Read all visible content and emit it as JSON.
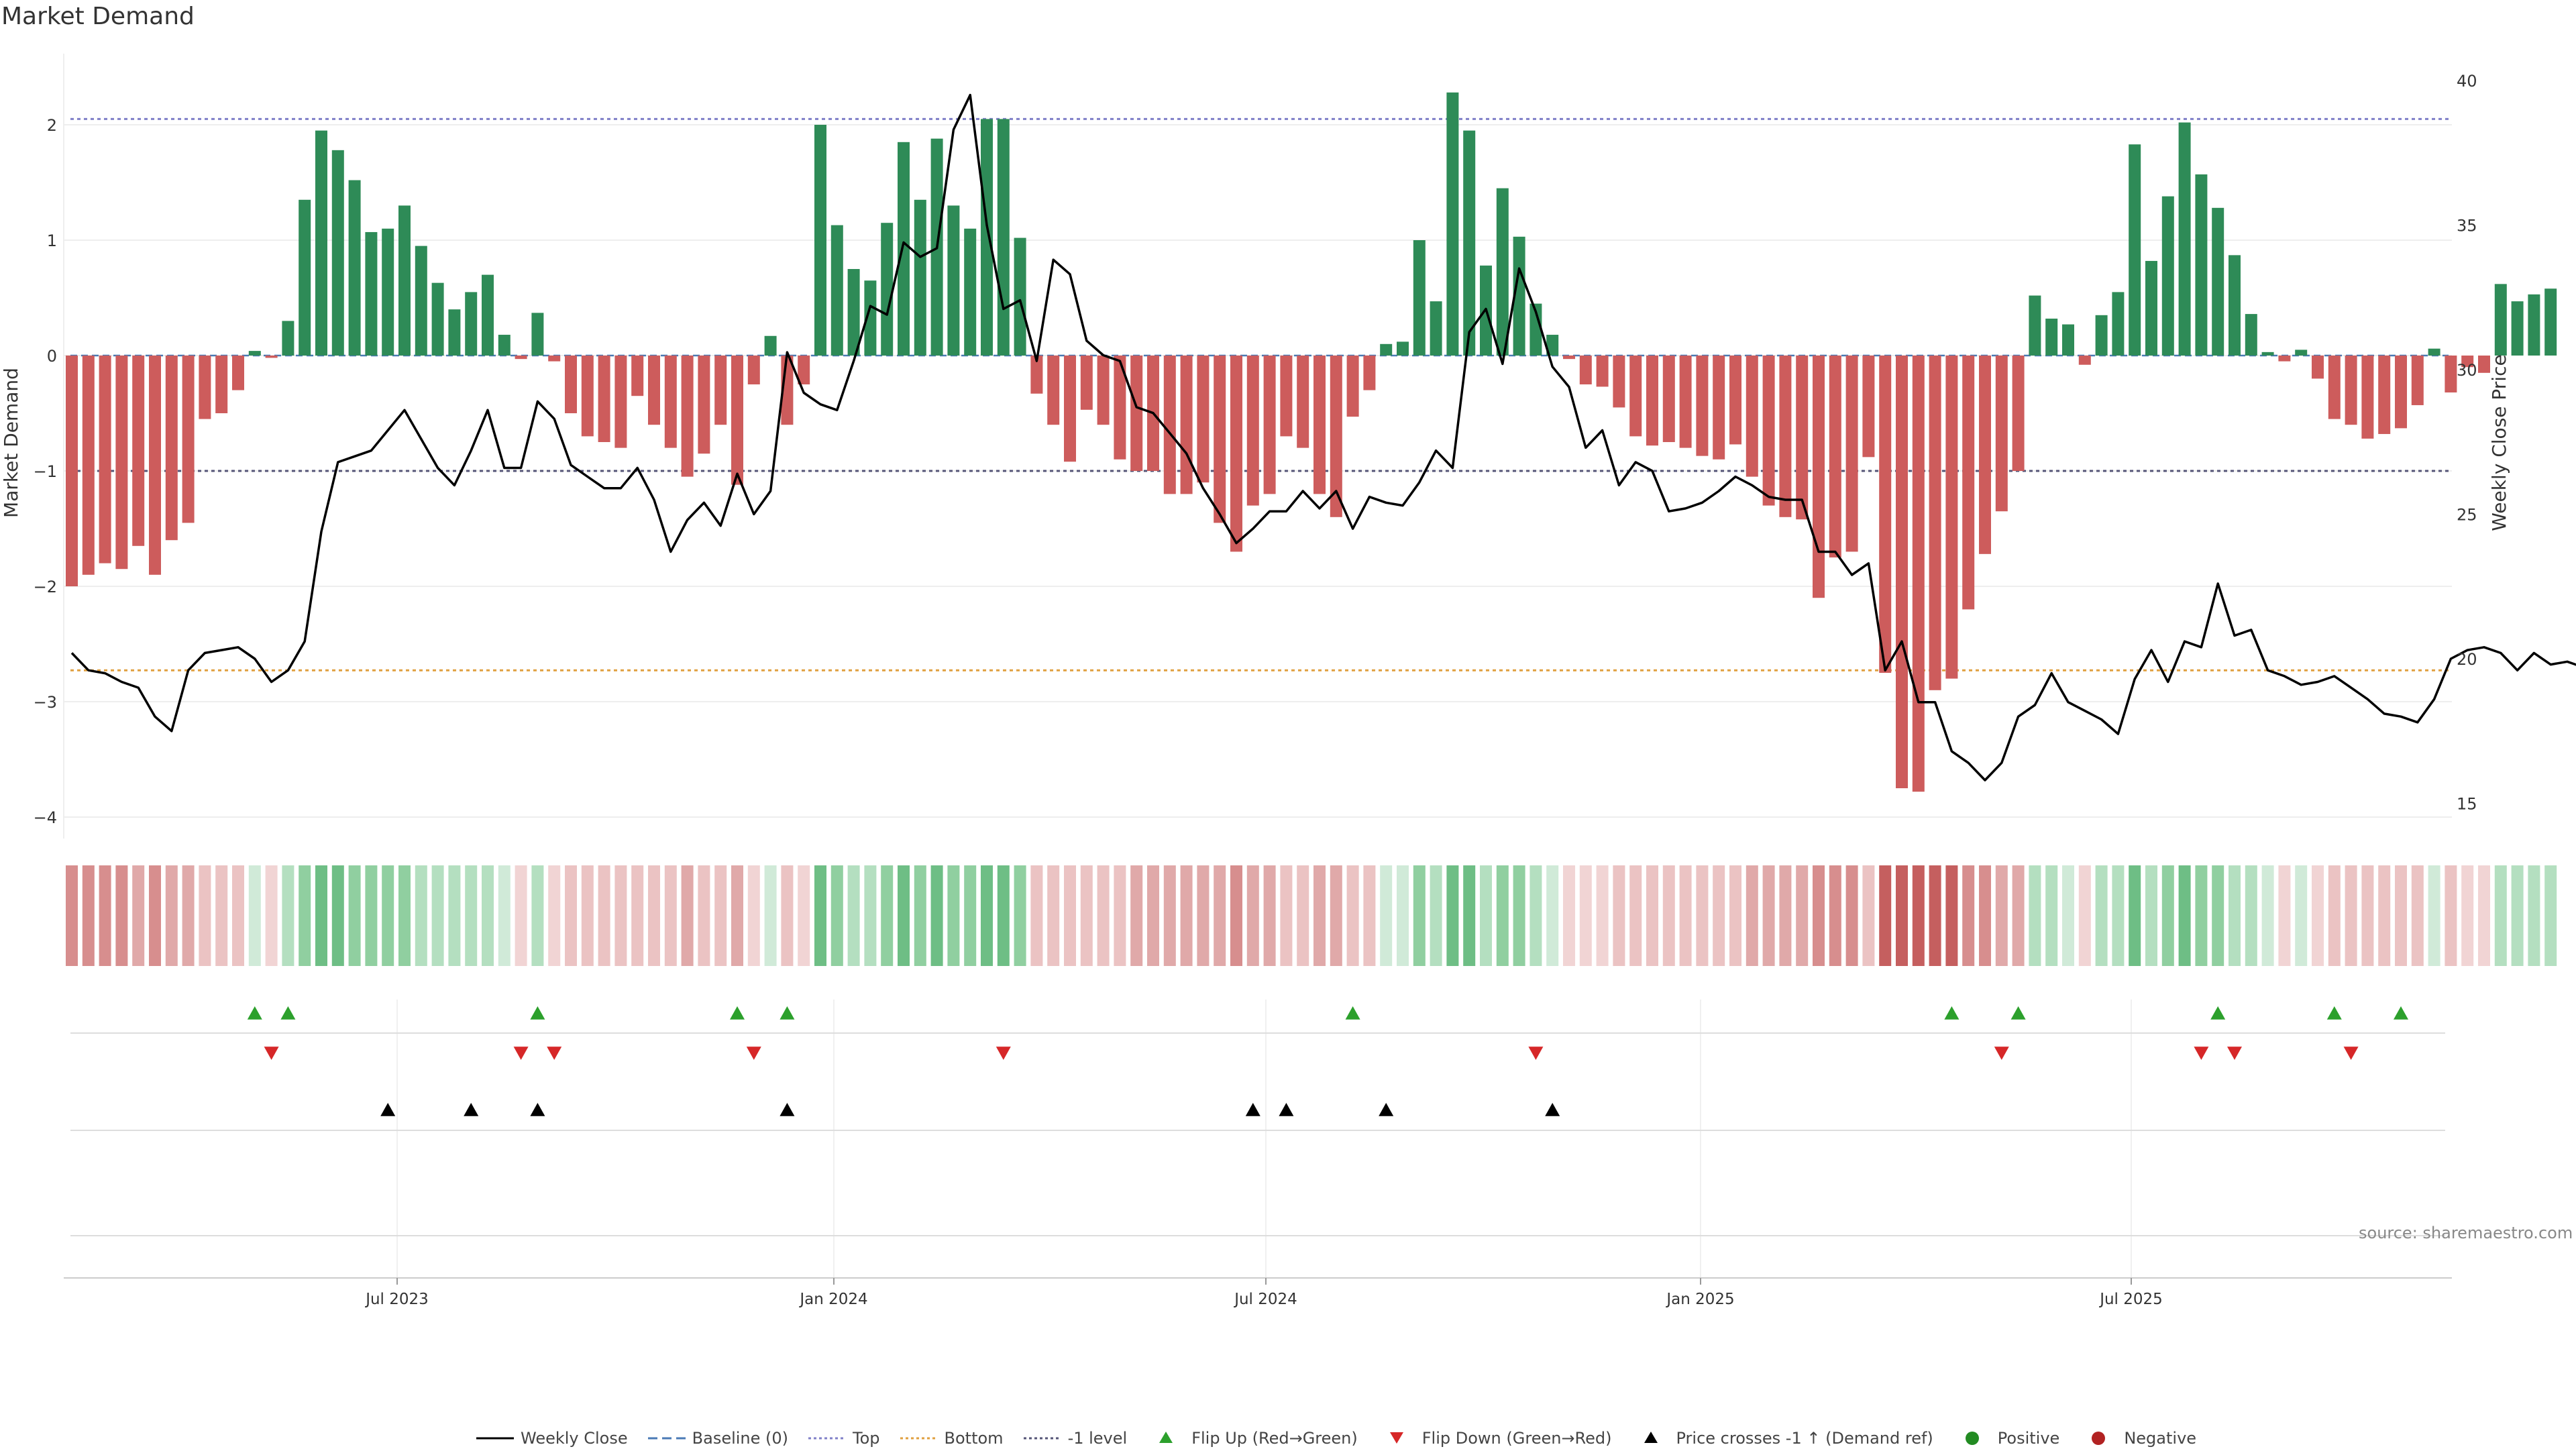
{
  "chart_data": {
    "type": "bar",
    "title": "Market Demand",
    "source": "source: sharemaestro.com",
    "ylabel": "Market Demand",
    "y2label": "Weekly Close Price",
    "ylim": [
      -4,
      2.3
    ],
    "y2lim": [
      15,
      40
    ],
    "yticks": [
      "2",
      "1",
      "0",
      "−1",
      "−2",
      "−3",
      "−4"
    ],
    "y2ticks": [
      "40",
      "35",
      "30",
      "25",
      "20",
      "15"
    ],
    "x_ticks": [
      "Jul 2023",
      "Jan 2024",
      "Jul 2024",
      "Jan 2025",
      "Jul 2025"
    ],
    "reference_lines": {
      "top": 2.05,
      "minus_one_level": -1.0,
      "bottom_price": 19.6
    },
    "grid": true,
    "series": [
      {
        "name": "Market Demand",
        "values": [
          -2.0,
          -1.9,
          -1.8,
          -1.85,
          -1.65,
          -1.9,
          -1.6,
          -1.45,
          -0.55,
          -0.5,
          -0.3,
          0.04,
          -0.02,
          0.3,
          1.35,
          1.95,
          1.78,
          1.52,
          1.07,
          1.1,
          1.3,
          0.95,
          0.63,
          0.4,
          0.55,
          0.7,
          0.18,
          -0.03,
          0.37,
          -0.05,
          -0.5,
          -0.7,
          -0.75,
          -0.8,
          -0.35,
          -0.6,
          -0.8,
          -1.05,
          -0.85,
          -0.6,
          -1.12,
          -0.25,
          0.17,
          -0.6,
          -0.25,
          2.0,
          1.13,
          0.75,
          0.65,
          1.15,
          1.85,
          1.35,
          1.88,
          1.3,
          1.1,
          2.05,
          2.05,
          1.02,
          -0.33,
          -0.6,
          -0.92,
          -0.47,
          -0.6,
          -0.9,
          -1.0,
          -1.0,
          -1.2,
          -1.2,
          -1.1,
          -1.45,
          -1.7,
          -1.3,
          -1.2,
          -0.7,
          -0.8,
          -1.2,
          -1.4,
          -0.53,
          -0.3,
          0.1,
          0.12,
          1.0,
          0.47,
          2.28,
          1.95,
          0.78,
          1.45,
          1.03,
          0.45,
          0.18,
          -0.03,
          -0.25,
          -0.27,
          -0.45,
          -0.7,
          -0.78,
          -0.75,
          -0.8,
          -0.87,
          -0.9,
          -0.77,
          -1.05,
          -1.3,
          -1.4,
          -1.42,
          -2.1,
          -1.75,
          -1.7,
          -0.88,
          -2.75,
          -3.75,
          -3.78,
          -2.9,
          -2.8,
          -2.2,
          -1.72,
          -1.35,
          -1.0,
          0.52,
          0.32,
          0.27,
          -0.08,
          0.35,
          0.55,
          1.83,
          0.82,
          1.38,
          2.02,
          1.57,
          1.28,
          0.87,
          0.36,
          0.03,
          -0.05,
          0.05,
          -0.2,
          -0.55,
          -0.6,
          -0.72,
          -0.68,
          -0.63,
          -0.43,
          0.06,
          -0.32,
          -0.1,
          -0.15,
          0.62,
          0.47,
          0.53,
          0.58
        ]
      },
      {
        "name": "Weekly Close",
        "values": [
          20.2,
          19.6,
          19.5,
          19.2,
          19.0,
          18.0,
          17.5,
          19.6,
          20.2,
          20.3,
          20.4,
          20.0,
          19.2,
          19.6,
          20.6,
          24.4,
          26.8,
          27.0,
          27.2,
          27.9,
          28.6,
          27.6,
          26.6,
          26.0,
          27.2,
          28.6,
          26.6,
          26.6,
          28.9,
          28.3,
          26.7,
          26.3,
          25.9,
          25.9,
          26.6,
          25.5,
          23.7,
          24.8,
          25.4,
          24.6,
          26.4,
          25.0,
          25.8,
          30.6,
          29.2,
          28.8,
          28.6,
          30.3,
          32.2,
          31.9,
          34.4,
          33.9,
          34.2,
          38.3,
          39.5,
          35.0,
          32.1,
          32.4,
          30.3,
          33.8,
          33.3,
          31.0,
          30.5,
          30.3,
          28.7,
          28.5,
          27.8,
          27.1,
          25.9,
          25.0,
          24.0,
          24.5,
          25.1,
          25.1,
          25.8,
          25.2,
          25.8,
          24.5,
          25.6,
          25.4,
          25.3,
          26.1,
          27.2,
          26.6,
          31.3,
          32.1,
          30.2,
          33.5,
          32.0,
          30.1,
          29.4,
          27.3,
          27.9,
          26.0,
          26.8,
          26.5,
          25.1,
          25.2,
          25.4,
          25.8,
          26.3,
          26.0,
          25.6,
          25.5,
          25.5,
          23.7,
          23.7,
          22.9,
          23.3,
          19.6,
          20.6,
          18.5,
          18.5,
          16.8,
          16.4,
          15.8,
          16.4,
          18.0,
          18.4,
          19.5,
          18.5,
          18.2,
          17.9,
          17.4,
          19.3,
          20.3,
          19.2,
          20.6,
          20.4,
          22.6,
          20.8,
          21.0,
          19.6,
          19.4,
          19.1,
          19.2,
          19.4,
          19.0,
          18.6,
          18.1,
          18.0,
          17.8,
          18.6,
          20.0,
          20.3,
          20.4,
          20.2,
          19.6,
          20.2,
          19.8,
          19.9,
          19.7
        ]
      }
    ],
    "shading_levels": [
      -2.0,
      -1.9,
      -1.8,
      -1.85,
      -1.65,
      -1.9,
      -1.6,
      -1.45,
      -0.55,
      -0.5,
      -0.3,
      0.04,
      -0.02,
      0.3,
      1.35,
      1.95,
      1.78,
      1.52,
      1.07,
      1.1,
      1.3,
      0.95,
      0.63,
      0.4,
      0.55,
      0.7,
      0.18,
      -0.03,
      0.37,
      -0.05,
      -0.5,
      -0.7,
      -0.75,
      -0.8,
      -0.35,
      -0.6,
      -0.8,
      -1.05,
      -0.85,
      -0.6,
      -1.12,
      -0.25,
      0.17,
      -0.6,
      -0.25,
      2.0,
      1.13,
      0.75,
      0.65,
      1.15,
      1.85,
      1.35,
      1.88,
      1.3,
      1.1,
      2.05,
      2.05,
      1.02,
      -0.33,
      -0.6,
      -0.92,
      -0.47,
      -0.6,
      -0.9,
      -1.0,
      -1.0,
      -1.2,
      -1.2,
      -1.1,
      -1.45,
      -1.7,
      -1.3,
      -1.2,
      -0.7,
      -0.8,
      -1.2,
      -1.4,
      -0.53,
      -0.3,
      0.1,
      0.12,
      1.0,
      0.47,
      2.28,
      1.95,
      0.78,
      1.45,
      1.03,
      0.45,
      0.18,
      -0.03,
      -0.25,
      -0.27,
      -0.45,
      -0.7,
      -0.78,
      -0.75,
      -0.8,
      -0.87,
      -0.9,
      -0.77,
      -1.05,
      -1.3,
      -1.4,
      -1.42,
      -2.1,
      -1.75,
      -1.7,
      -0.88,
      -2.75,
      -3.75,
      -3.78,
      -2.9,
      -2.8,
      -2.2,
      -1.72,
      -1.35,
      -1.0,
      0.52,
      0.32,
      0.27,
      -0.08,
      0.35,
      0.55,
      1.83,
      0.82,
      1.38,
      2.02,
      1.57,
      1.28,
      0.87,
      0.36,
      0.03,
      -0.05,
      0.05,
      -0.2,
      -0.55,
      -0.6,
      -0.72,
      -0.68,
      -0.63,
      -0.43,
      0.06,
      -0.32,
      -0.1,
      -0.15,
      0.62,
      0.47,
      0.53,
      0.58
    ],
    "flip_up_weeks": [
      11,
      13,
      28,
      40,
      43,
      77,
      113,
      117,
      129,
      136,
      140
    ],
    "flip_down_weeks": [
      12,
      27,
      29,
      41,
      56,
      88,
      116,
      128,
      130,
      137
    ],
    "price_cross_weeks": [
      19,
      24,
      28,
      43,
      71,
      73,
      79,
      89
    ],
    "legend": [
      "Weekly Close",
      "Baseline (0)",
      "Top",
      "Bottom",
      "-1 level",
      "Flip Up (Red→Green)",
      "Flip Down (Green→Red)",
      "Price crosses -1 ↑ (Demand ref)",
      "Positive",
      "Negative"
    ],
    "colors": {
      "positive": "#2e8b57",
      "negative": "#cd5c5c",
      "price": "#000000",
      "top": "#8080c8",
      "bottom": "#e0a040",
      "minus_one": "#555577",
      "baseline": "#4a7ab5",
      "flip_up": "#2ca02c",
      "flip_down": "#d62728",
      "cross": "#000000",
      "pos_dot": "#228b22",
      "neg_dot": "#b22222"
    }
  }
}
